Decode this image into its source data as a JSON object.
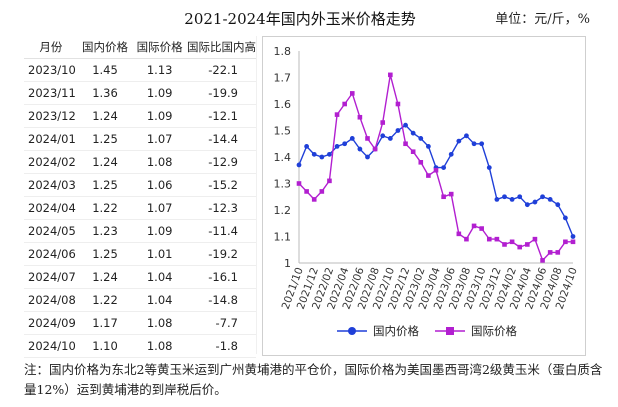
{
  "title": "2021-2024年国内外玉米价格走势",
  "unit": "单位：元/斤，%",
  "table": {
    "headers": [
      "月份",
      "国内价格",
      "国际价格",
      "国际比国内高"
    ],
    "rows": [
      [
        "2023/10",
        "1.45",
        "1.13",
        "-22.1"
      ],
      [
        "2023/11",
        "1.36",
        "1.09",
        "-19.9"
      ],
      [
        "2023/12",
        "1.24",
        "1.09",
        "-12.1"
      ],
      [
        "2024/01",
        "1.25",
        "1.07",
        "-14.4"
      ],
      [
        "2024/02",
        "1.24",
        "1.08",
        "-12.9"
      ],
      [
        "2024/03",
        "1.25",
        "1.06",
        "-15.2"
      ],
      [
        "2024/04",
        "1.22",
        "1.07",
        "-12.3"
      ],
      [
        "2024/05",
        "1.23",
        "1.09",
        "-11.4"
      ],
      [
        "2024/06",
        "1.25",
        "1.01",
        "-19.2"
      ],
      [
        "2024/07",
        "1.24",
        "1.04",
        "-16.1"
      ],
      [
        "2024/08",
        "1.22",
        "1.04",
        "-14.8"
      ],
      [
        "2024/09",
        "1.17",
        "1.08",
        "-7.7"
      ],
      [
        "2024/10",
        "1.10",
        "1.08",
        "-1.8"
      ]
    ]
  },
  "chart_data": {
    "type": "line",
    "ylim": [
      1,
      1.8
    ],
    "yticks": [
      "1",
      "1.1",
      "1.2",
      "1.3",
      "1.4",
      "1.5",
      "1.6",
      "1.7",
      "1.8"
    ],
    "ytick_values": [
      1,
      1.1,
      1.2,
      1.3,
      1.4,
      1.5,
      1.6,
      1.7,
      1.8
    ],
    "x_labels": [
      "2021/10",
      "2021/12",
      "2022/02",
      "2022/04",
      "2022/06",
      "2022/08",
      "2022/10",
      "2022/12",
      "2023/02",
      "2023/04",
      "2023/06",
      "2023/08",
      "2023/10",
      "2023/12",
      "2024/02",
      "2024/04",
      "2024/06",
      "2024/08",
      "2024/10"
    ],
    "x": [
      "2021/10",
      "2021/11",
      "2021/12",
      "2022/01",
      "2022/02",
      "2022/03",
      "2022/04",
      "2022/05",
      "2022/06",
      "2022/07",
      "2022/08",
      "2022/09",
      "2022/10",
      "2022/11",
      "2022/12",
      "2023/01",
      "2023/02",
      "2023/03",
      "2023/04",
      "2023/05",
      "2023/06",
      "2023/07",
      "2023/08",
      "2023/09",
      "2023/10",
      "2023/11",
      "2023/12",
      "2024/01",
      "2024/02",
      "2024/03",
      "2024/04",
      "2024/05",
      "2024/06",
      "2024/07",
      "2024/08",
      "2024/09",
      "2024/10"
    ],
    "series": [
      {
        "name": "国内价格",
        "color": "#1f3fd8",
        "marker": "circle",
        "values": [
          1.37,
          1.44,
          1.41,
          1.4,
          1.41,
          1.44,
          1.45,
          1.47,
          1.43,
          1.4,
          1.43,
          1.48,
          1.47,
          1.5,
          1.52,
          1.49,
          1.47,
          1.44,
          1.36,
          1.36,
          1.41,
          1.46,
          1.48,
          1.45,
          1.45,
          1.36,
          1.24,
          1.25,
          1.24,
          1.25,
          1.22,
          1.23,
          1.25,
          1.24,
          1.22,
          1.17,
          1.1
        ]
      },
      {
        "name": "国际价格",
        "color": "#b21fd0",
        "marker": "square",
        "values": [
          1.3,
          1.27,
          1.24,
          1.27,
          1.31,
          1.56,
          1.6,
          1.64,
          1.55,
          1.47,
          1.43,
          1.53,
          1.71,
          1.6,
          1.45,
          1.42,
          1.38,
          1.33,
          1.35,
          1.25,
          1.26,
          1.11,
          1.09,
          1.14,
          1.13,
          1.09,
          1.09,
          1.07,
          1.08,
          1.06,
          1.07,
          1.09,
          1.01,
          1.04,
          1.04,
          1.08,
          1.08
        ]
      }
    ],
    "legend": "bottom"
  },
  "footnote": "注：国内价格为东北2等黄玉米运到广州黄埔港的平仓价，国际价格为美国墨西哥湾2级黄玉米（蛋白质含量12%）运到黄埔港的到岸税后价。"
}
